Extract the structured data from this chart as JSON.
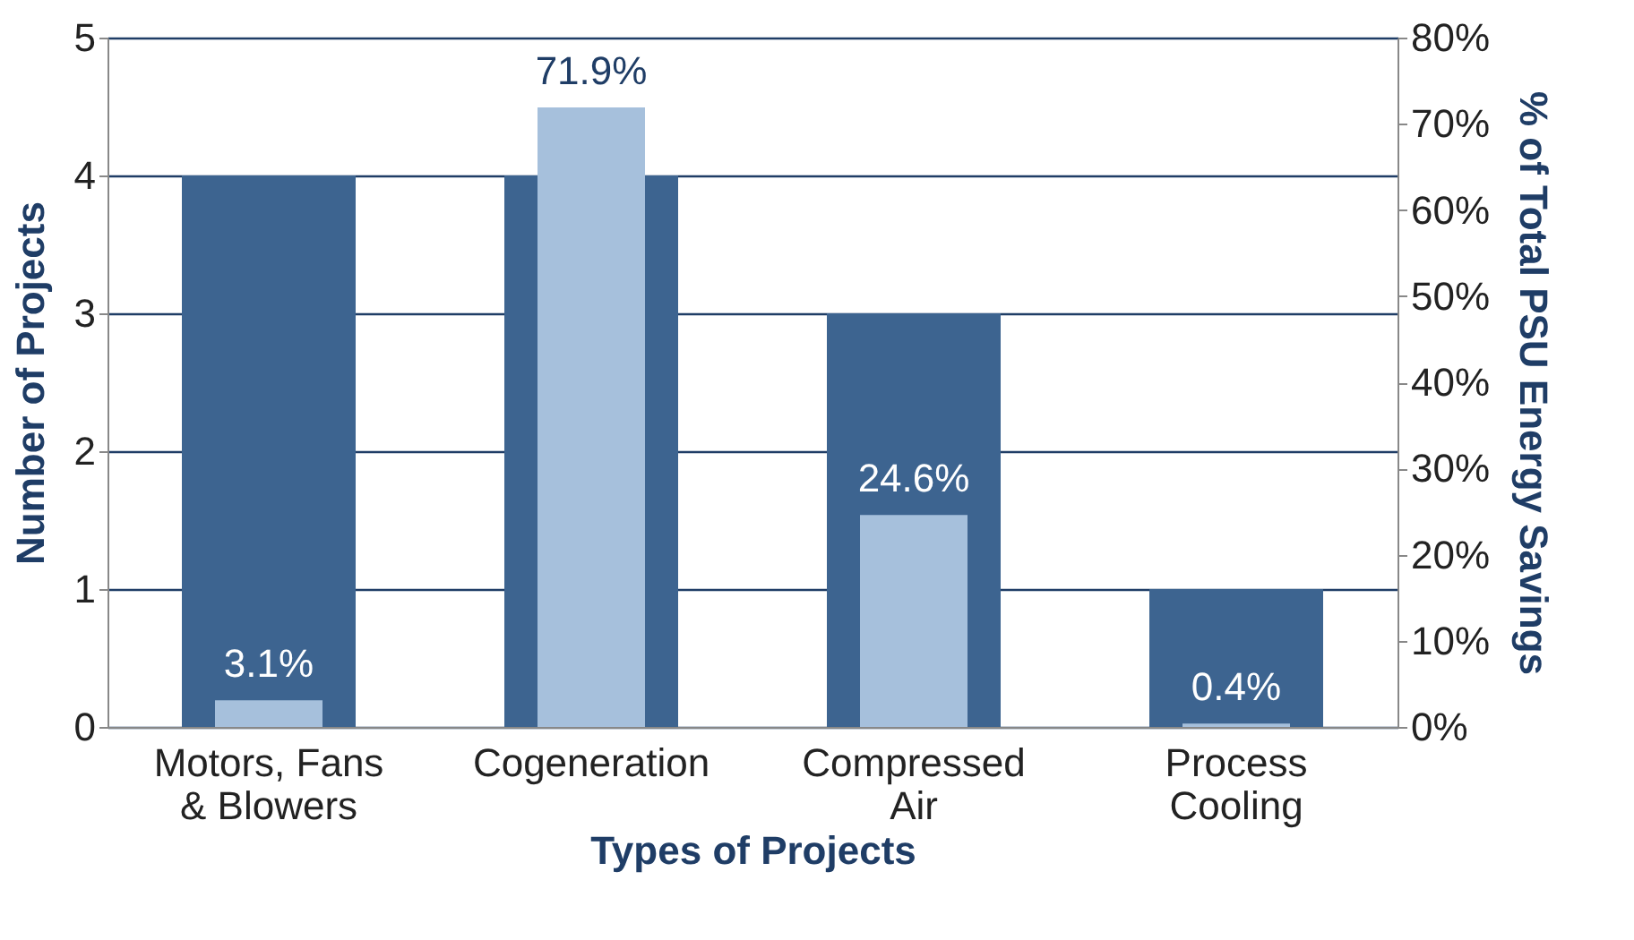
{
  "chart_data": {
    "type": "bar",
    "categories": [
      "Motors, Fans & Blowers",
      "Cogeneration",
      "Compressed Air",
      "Process Cooling"
    ],
    "xlabel": "Types of Projects",
    "ylabel": "Number of Projects",
    "y2label": "% of Total PSU Energy Savings",
    "series": [
      {
        "color": "#3d6490",
        "values": [
          4,
          4,
          3,
          1
        ]
      },
      {
        "color": "#a6c0dc",
        "axis": "y2",
        "values": [
          3.1,
          71.9,
          24.6,
          0.4
        ],
        "value_labels": [
          "3.1%",
          "71.9%",
          "24.6%",
          "0.4%"
        ]
      }
    ],
    "ylim": [
      0,
      5
    ],
    "yticks": [
      0,
      1,
      2,
      3,
      4,
      5
    ],
    "y2lim": [
      0,
      80
    ],
    "y2ticks": [
      {
        "value": 0,
        "label": "0%"
      },
      {
        "value": 10,
        "label": "10%"
      },
      {
        "value": 20,
        "label": "20%"
      },
      {
        "value": 30,
        "label": "30%"
      },
      {
        "value": 40,
        "label": "40%"
      },
      {
        "value": 50,
        "label": "50%"
      },
      {
        "value": 60,
        "label": "60%"
      },
      {
        "value": 70,
        "label": "70%"
      },
      {
        "value": 80,
        "label": "80%"
      }
    ],
    "grid": "y"
  }
}
